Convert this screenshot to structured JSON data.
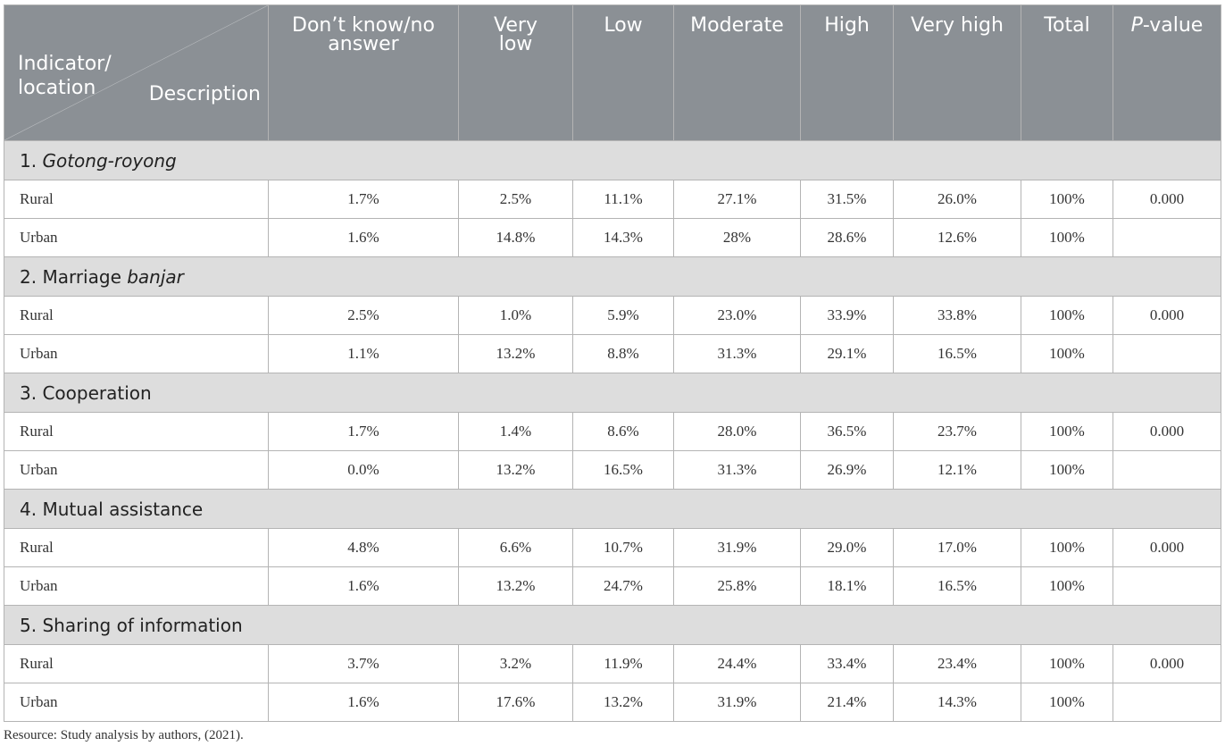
{
  "header": {
    "indicator_location": "Indicator/ location",
    "description": "Description",
    "columns": [
      "Don’t know/no answer",
      "Very low",
      "Low",
      "Moderate",
      "High",
      "Very high",
      "Total",
      "P-value"
    ]
  },
  "groups": [
    {
      "number": "1.",
      "name": "Gotong-royong",
      "rows": [
        {
          "location": "Rural",
          "values": [
            "1.7%",
            "2.5%",
            "11.1%",
            "27.1%",
            "31.5%",
            "26.0%",
            "100%",
            "0.000"
          ]
        },
        {
          "location": "Urban",
          "values": [
            "1.6%",
            "14.8%",
            "14.3%",
            "28%",
            "28.6%",
            "12.6%",
            "100%",
            ""
          ]
        }
      ]
    },
    {
      "number": "2.",
      "name": "Marriage banjar",
      "rows": [
        {
          "location": "Rural",
          "values": [
            "2.5%",
            "1.0%",
            "5.9%",
            "23.0%",
            "33.9%",
            "33.8%",
            "100%",
            "0.000"
          ]
        },
        {
          "location": "Urban",
          "values": [
            "1.1%",
            "13.2%",
            "8.8%",
            "31.3%",
            "29.1%",
            "16.5%",
            "100%",
            ""
          ]
        }
      ]
    },
    {
      "number": "3.",
      "name": "Cooperation",
      "rows": [
        {
          "location": "Rural",
          "values": [
            "1.7%",
            "1.4%",
            "8.6%",
            "28.0%",
            "36.5%",
            "23.7%",
            "100%",
            "0.000"
          ]
        },
        {
          "location": "Urban",
          "values": [
            "0.0%",
            "13.2%",
            "16.5%",
            "31.3%",
            "26.9%",
            "12.1%",
            "100%",
            ""
          ]
        }
      ]
    },
    {
      "number": "4.",
      "name": "Mutual assistance",
      "rows": [
        {
          "location": "Rural",
          "values": [
            "4.8%",
            "6.6%",
            "10.7%",
            "31.9%",
            "29.0%",
            "17.0%",
            "100%",
            "0.000"
          ]
        },
        {
          "location": "Urban",
          "values": [
            "1.6%",
            "13.2%",
            "24.7%",
            "25.8%",
            "18.1%",
            "16.5%",
            "100%",
            ""
          ]
        }
      ]
    },
    {
      "number": "5.",
      "name": "Sharing of information",
      "rows": [
        {
          "location": "Rural",
          "values": [
            "3.7%",
            "3.2%",
            "11.9%",
            "24.4%",
            "33.4%",
            "23.4%",
            "100%",
            "0.000"
          ]
        },
        {
          "location": "Urban",
          "values": [
            "1.6%",
            "17.6%",
            "13.2%",
            "31.9%",
            "21.4%",
            "14.3%",
            "100%",
            ""
          ]
        }
      ]
    }
  ],
  "source_note": "Resource: Study analysis by authors, (2021).",
  "colors": {
    "header_bg": "#8b9095",
    "group_bg": "#dddddd",
    "border": "#b4b4b4"
  }
}
